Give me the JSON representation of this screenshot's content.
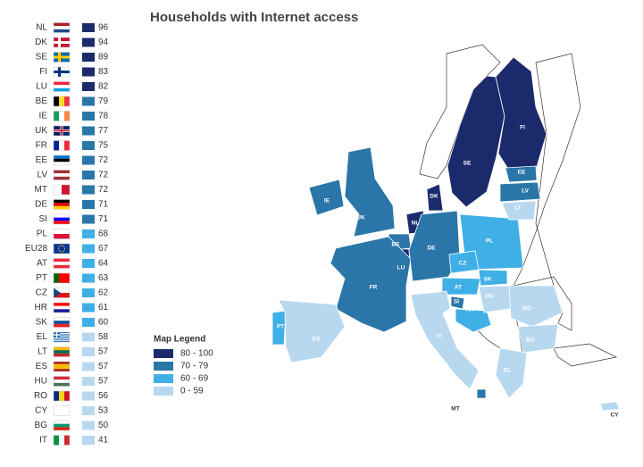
{
  "title": "Households with Internet access",
  "countries": [
    {
      "code": "NL",
      "value": 96
    },
    {
      "code": "DK",
      "value": 94
    },
    {
      "code": "SE",
      "value": 89
    },
    {
      "code": "FI",
      "value": 83
    },
    {
      "code": "LU",
      "value": 82
    },
    {
      "code": "BE",
      "value": 79
    },
    {
      "code": "IE",
      "value": 78
    },
    {
      "code": "UK",
      "value": 77
    },
    {
      "code": "FR",
      "value": 75
    },
    {
      "code": "EE",
      "value": 72
    },
    {
      "code": "LV",
      "value": 72
    },
    {
      "code": "MT",
      "value": 72
    },
    {
      "code": "DE",
      "value": 71
    },
    {
      "code": "SI",
      "value": 71
    },
    {
      "code": "PL",
      "value": 68
    },
    {
      "code": "EU28",
      "value": 67
    },
    {
      "code": "AT",
      "value": 64
    },
    {
      "code": "PT",
      "value": 63
    },
    {
      "code": "CZ",
      "value": 62
    },
    {
      "code": "HR",
      "value": 61
    },
    {
      "code": "SK",
      "value": 60
    },
    {
      "code": "EL",
      "value": 58
    },
    {
      "code": "LT",
      "value": 57
    },
    {
      "code": "ES",
      "value": 57
    },
    {
      "code": "HU",
      "value": 57
    },
    {
      "code": "RO",
      "value": 56
    },
    {
      "code": "CY",
      "value": 53
    },
    {
      "code": "BG",
      "value": 50
    },
    {
      "code": "IT",
      "value": 41
    }
  ],
  "legend": {
    "title": "Map Legend",
    "items": [
      {
        "label": "80 - 100",
        "range": [
          80,
          100
        ],
        "color": "#1b2a6b"
      },
      {
        "label": "70 - 79",
        "range": [
          70,
          79
        ],
        "color": "#2a76a8"
      },
      {
        "label": "60 - 69",
        "range": [
          60,
          69
        ],
        "color": "#3fb0e6"
      },
      {
        "label": "0 - 59",
        "range": [
          0,
          59
        ],
        "color": "#b8d8f0"
      }
    ]
  }
}
